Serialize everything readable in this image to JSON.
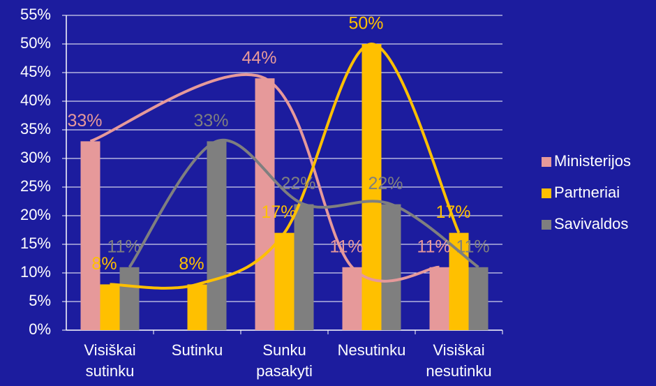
{
  "chart_data": {
    "type": "bar",
    "categories": [
      "Visiškai sutinku",
      "Sutinku",
      "Sunku pasakyti",
      "Nesutinku",
      "Visiškai nesutinku"
    ],
    "series": [
      {
        "name": "Ministerijos",
        "color": "#e6999a",
        "values": [
          33,
          null,
          44,
          11,
          11
        ],
        "value_labels": [
          "33%",
          null,
          "44%",
          "11%",
          "11%"
        ]
      },
      {
        "name": "Partneriai",
        "color": "#ffc000",
        "values": [
          8,
          8,
          17,
          50,
          17
        ],
        "value_labels": [
          "8%",
          "8%",
          "17%",
          "50%",
          "17%"
        ]
      },
      {
        "name": "Savivaldos",
        "color": "#7f7f7f",
        "values": [
          11,
          33,
          22,
          22,
          11
        ],
        "value_labels": [
          "11%",
          "33%",
          "22%",
          "22%",
          "11%"
        ]
      }
    ],
    "ylim": [
      0,
      55
    ],
    "yticks": [
      {
        "value": 0,
        "label": "0%"
      },
      {
        "value": 5,
        "label": "5%"
      },
      {
        "value": 10,
        "label": "10%"
      },
      {
        "value": 15,
        "label": "15%"
      },
      {
        "value": 20,
        "label": "20%"
      },
      {
        "value": 25,
        "label": "25%"
      },
      {
        "value": 30,
        "label": "30%"
      },
      {
        "value": 35,
        "label": "35%"
      },
      {
        "value": 40,
        "label": "40%"
      },
      {
        "value": 45,
        "label": "45%"
      },
      {
        "value": 50,
        "label": "50%"
      },
      {
        "value": 55,
        "label": "55%"
      }
    ],
    "grid": true,
    "smooth_lines": true,
    "legend": "right"
  }
}
